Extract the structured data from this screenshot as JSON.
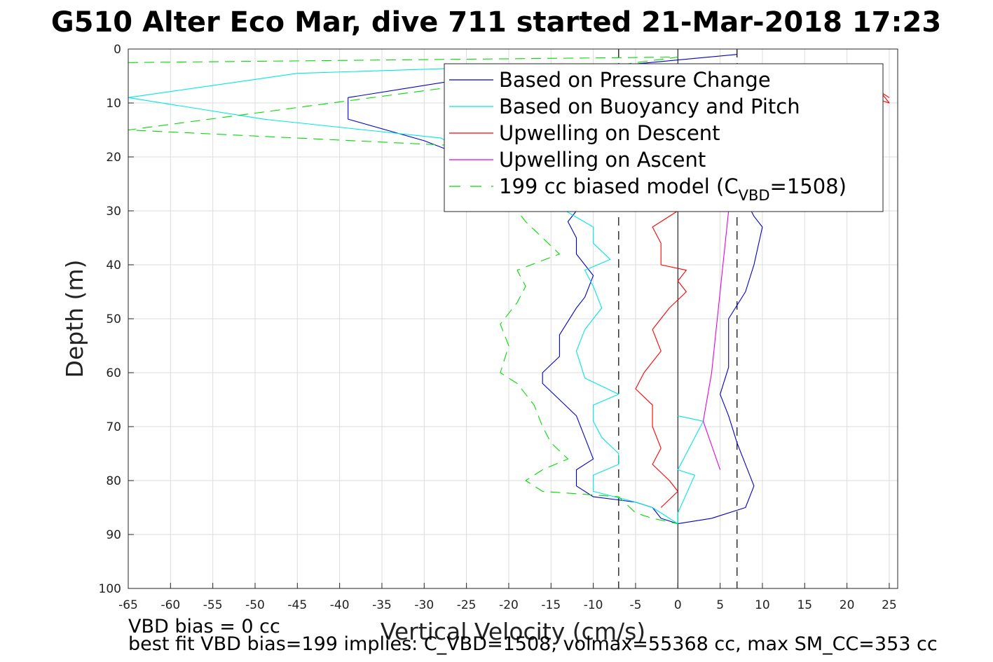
{
  "title": "G510 Alter Eco Mar, dive 711 started 21-Mar-2018 17:23",
  "footer": {
    "line1": "VBD bias = 0 cc",
    "line2": "best fit VBD bias=199 implies: C_VBD=1508, volmax=55368 cc, max SM_CC=353 cc"
  },
  "chart_data": {
    "type": "line",
    "xlabel": "Vertical Velocity (cm/s)",
    "ylabel": "Depth (m)",
    "xlim": [
      -65,
      26
    ],
    "ylim": [
      0,
      100
    ],
    "y_reversed": true,
    "xticks": [
      -65,
      -60,
      -55,
      -50,
      -45,
      -40,
      -35,
      -30,
      -25,
      -20,
      -15,
      -10,
      -5,
      0,
      5,
      10,
      15,
      20,
      25
    ],
    "yticks": [
      0,
      10,
      20,
      30,
      40,
      50,
      60,
      70,
      80,
      90,
      100
    ],
    "grid": true,
    "legend_position": "top-right",
    "reference_lines": {
      "zero_line_x": 0,
      "dashed_x": [
        -7,
        7
      ]
    },
    "series": [
      {
        "name": "Based on Pressure Change",
        "color": "#0000cc",
        "style": "solid",
        "points": [
          [
            7,
            1
          ],
          [
            -27,
            6
          ],
          [
            -39,
            9
          ],
          [
            -39,
            13
          ],
          [
            -30,
            17
          ],
          [
            -25,
            20
          ],
          [
            -12,
            30
          ],
          [
            -13,
            32
          ],
          [
            -12,
            35
          ],
          [
            -12,
            38
          ],
          [
            -10,
            42
          ],
          [
            -11,
            46
          ],
          [
            -12,
            48
          ],
          [
            -14,
            53
          ],
          [
            -14,
            57
          ],
          [
            -16,
            60
          ],
          [
            -16,
            62
          ],
          [
            -14,
            65
          ],
          [
            -12,
            68
          ],
          [
            -11,
            72
          ],
          [
            -10,
            76
          ],
          [
            -12,
            78
          ],
          [
            -12,
            81
          ],
          [
            -10,
            83
          ],
          [
            -5,
            84
          ],
          [
            -3,
            85
          ],
          [
            -2,
            87
          ],
          [
            0,
            88
          ],
          [
            4,
            87
          ],
          [
            8,
            85
          ],
          [
            9,
            81
          ],
          [
            8,
            77
          ],
          [
            7,
            73
          ],
          [
            6,
            68
          ],
          [
            5,
            64
          ],
          [
            6,
            59
          ],
          [
            6,
            55
          ],
          [
            6,
            50
          ],
          [
            8,
            45
          ],
          [
            9,
            40
          ],
          [
            10,
            33
          ],
          [
            9,
            31
          ],
          [
            7,
            25
          ]
        ]
      },
      {
        "name": "Based on Buoyancy and Pitch",
        "color": "#00e6e6",
        "style": "solid",
        "points": [
          [
            -25,
            3.5
          ],
          [
            -45,
            4.5
          ],
          [
            -65,
            9
          ],
          [
            -49,
            13
          ],
          [
            -37,
            15
          ],
          [
            -28,
            16.5
          ],
          [
            -10,
            33
          ],
          [
            -10,
            36
          ],
          [
            -8,
            39
          ],
          [
            -11,
            41
          ],
          [
            -10,
            44
          ],
          [
            -9,
            48
          ],
          [
            -11,
            52
          ],
          [
            -12,
            56
          ],
          [
            -11,
            61
          ],
          [
            -7,
            64
          ],
          [
            -10,
            66
          ],
          [
            -10,
            69
          ],
          [
            -9,
            72
          ],
          [
            -7,
            75
          ],
          [
            -7,
            77
          ],
          [
            -10,
            79
          ],
          [
            -10,
            82
          ],
          [
            -5,
            84
          ],
          [
            -3,
            85
          ],
          [
            -1,
            87
          ],
          [
            0,
            88
          ],
          [
            0,
            86
          ],
          [
            2,
            79
          ],
          [
            0,
            78
          ],
          [
            3,
            69
          ],
          [
            0,
            68
          ]
        ]
      },
      {
        "name": "Upwelling on Descent",
        "color": "#ff0000",
        "style": "solid",
        "points": [
          [
            25,
            9
          ],
          [
            24,
            8
          ],
          [
            25,
            10
          ],
          [
            23,
            9
          ],
          [
            0,
            30
          ],
          [
            -3,
            33
          ],
          [
            -2,
            36
          ],
          [
            -2,
            40
          ],
          [
            1,
            41
          ],
          [
            0,
            43
          ],
          [
            1,
            45
          ],
          [
            -1,
            48
          ],
          [
            -3,
            52
          ],
          [
            -2,
            56
          ],
          [
            -4,
            60
          ],
          [
            -5,
            63
          ],
          [
            -3,
            66
          ],
          [
            -3,
            70
          ],
          [
            -2,
            74
          ],
          [
            -3,
            77
          ],
          [
            -1,
            80
          ],
          [
            0,
            82
          ],
          [
            -2,
            85
          ]
        ]
      },
      {
        "name": "Upwelling on Ascent",
        "color": "#e600e6",
        "style": "solid",
        "points": [
          [
            6,
            30
          ],
          [
            5,
            45
          ],
          [
            4,
            60
          ],
          [
            3,
            69
          ],
          [
            5,
            78
          ]
        ]
      },
      {
        "name": "199 cc biased model (C_VBD=1508)",
        "color": "#00dd00",
        "style": "dashed",
        "points": [
          [
            -65,
            2.5
          ],
          [
            0,
            1.5
          ],
          [
            -65,
            15
          ],
          [
            -25,
            18
          ],
          [
            -18,
            32
          ],
          [
            -16,
            35
          ],
          [
            -14,
            38
          ],
          [
            -19,
            41
          ],
          [
            -18,
            44
          ],
          [
            -19,
            47
          ],
          [
            -21,
            51
          ],
          [
            -20,
            55
          ],
          [
            -21,
            60
          ],
          [
            -19,
            62
          ],
          [
            -17,
            66
          ],
          [
            -16,
            70
          ],
          [
            -15,
            73
          ],
          [
            -13,
            76
          ],
          [
            -16,
            78
          ],
          [
            -18,
            80
          ],
          [
            -16,
            82
          ],
          [
            -7,
            83
          ],
          [
            -5,
            86
          ],
          [
            -3,
            87
          ],
          [
            0,
            88
          ]
        ]
      }
    ],
    "legend_entries": [
      {
        "text": "Based on Pressure Change",
        "color": "#0000cc",
        "style": "solid"
      },
      {
        "text": "Based on Buoyancy and Pitch",
        "color": "#00e6e6",
        "style": "solid"
      },
      {
        "text": "Upwelling on Descent",
        "color": "#ff0000",
        "style": "solid"
      },
      {
        "text": "Upwelling on Ascent",
        "color": "#e600e6",
        "style": "solid"
      },
      {
        "text_main": "199 cc biased model (C",
        "text_sub": "VBD",
        "text_end": "=1508)",
        "color": "#00dd00",
        "style": "dashed"
      }
    ]
  }
}
